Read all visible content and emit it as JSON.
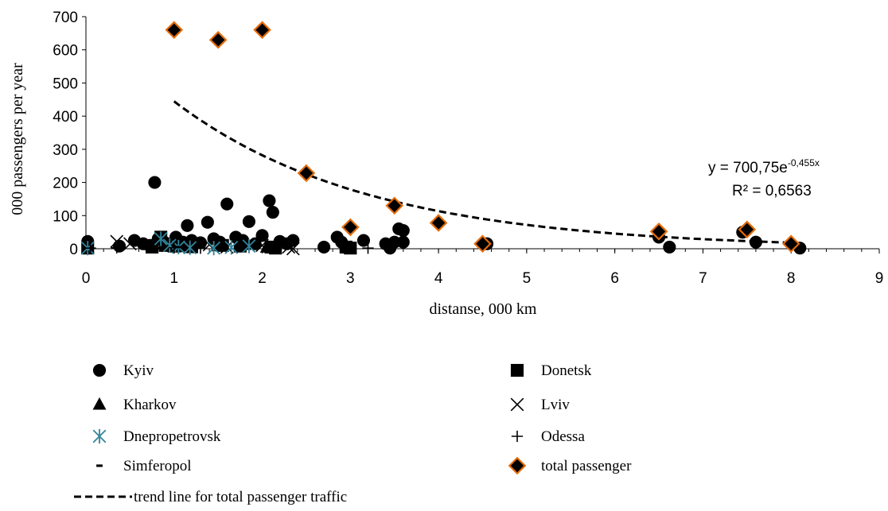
{
  "chart_data": {
    "type": "scatter",
    "xlabel": "distanse, 000 km",
    "ylabel": "000  passengers per year",
    "xlim": [
      0,
      9
    ],
    "ylim": [
      0,
      700
    ],
    "xticks": [
      "0",
      "1",
      "2",
      "3",
      "4",
      "5",
      "6",
      "7",
      "8",
      "9"
    ],
    "yticks": [
      "0",
      "100",
      "200",
      "300",
      "400",
      "500",
      "600",
      "700"
    ],
    "grid": false,
    "legend_position": "bottom",
    "series": [
      {
        "name": "Kyiv",
        "marker": "circle",
        "color": "#000000",
        "points": [
          [
            0.02,
            22
          ],
          [
            0.38,
            8
          ],
          [
            0.55,
            25
          ],
          [
            0.65,
            15
          ],
          [
            0.72,
            10
          ],
          [
            0.78,
            200
          ],
          [
            0.82,
            30
          ],
          [
            0.9,
            18
          ],
          [
            0.95,
            12
          ],
          [
            1.02,
            35
          ],
          [
            1.1,
            20
          ],
          [
            1.15,
            70
          ],
          [
            1.2,
            25
          ],
          [
            1.3,
            18
          ],
          [
            1.38,
            80
          ],
          [
            1.45,
            30
          ],
          [
            1.52,
            20
          ],
          [
            1.6,
            135
          ],
          [
            1.7,
            35
          ],
          [
            1.78,
            25
          ],
          [
            1.85,
            82
          ],
          [
            1.92,
            15
          ],
          [
            2.0,
            40
          ],
          [
            2.08,
            145
          ],
          [
            2.12,
            110
          ],
          [
            2.2,
            22
          ],
          [
            2.28,
            15
          ],
          [
            2.35,
            25
          ],
          [
            2.7,
            5
          ],
          [
            2.85,
            35
          ],
          [
            2.9,
            20
          ],
          [
            3.15,
            25
          ],
          [
            3.4,
            15
          ],
          [
            3.45,
            2
          ],
          [
            3.5,
            20
          ],
          [
            3.55,
            60
          ],
          [
            3.6,
            55
          ],
          [
            3.6,
            20
          ],
          [
            4.55,
            15
          ],
          [
            6.5,
            35
          ],
          [
            6.62,
            5
          ],
          [
            7.45,
            50
          ],
          [
            7.6,
            20
          ],
          [
            8.1,
            2
          ]
        ]
      },
      {
        "name": "Donetsk",
        "marker": "square",
        "color": "#000000",
        "points": [
          [
            0.02,
            2
          ],
          [
            0.75,
            5
          ],
          [
            0.85,
            35
          ],
          [
            0.9,
            10
          ],
          [
            1.0,
            8
          ],
          [
            1.1,
            12
          ],
          [
            1.2,
            6
          ],
          [
            1.55,
            10
          ],
          [
            1.75,
            8
          ],
          [
            2.1,
            5
          ],
          [
            2.15,
            2
          ],
          [
            2.95,
            5
          ],
          [
            3.0,
            2
          ]
        ]
      },
      {
        "name": "Kharkov",
        "marker": "triangle",
        "color": "#000000",
        "points": [
          [
            0.02,
            2
          ],
          [
            0.75,
            10
          ],
          [
            0.85,
            25
          ],
          [
            1.05,
            5
          ],
          [
            1.5,
            8
          ],
          [
            1.8,
            12
          ],
          [
            2.05,
            4
          ],
          [
            3.0,
            3
          ]
        ]
      },
      {
        "name": "Lviv",
        "marker": "x",
        "color": "#000000",
        "points": [
          [
            0.35,
            22
          ],
          [
            0.5,
            15
          ],
          [
            0.8,
            10
          ],
          [
            1.1,
            8
          ],
          [
            1.4,
            12
          ],
          [
            1.6,
            5
          ],
          [
            1.75,
            20
          ],
          [
            2.0,
            10
          ],
          [
            2.3,
            5
          ],
          [
            2.35,
            0
          ]
        ]
      },
      {
        "name": "Dnepropetrovsk",
        "marker": "asterisk",
        "color": "#31849b",
        "points": [
          [
            0.02,
            2
          ],
          [
            0.85,
            30
          ],
          [
            0.95,
            10
          ],
          [
            1.05,
            5
          ],
          [
            1.18,
            3
          ],
          [
            1.45,
            2
          ],
          [
            1.65,
            4
          ],
          [
            1.85,
            8
          ]
        ]
      },
      {
        "name": "Odessa",
        "marker": "plus",
        "color": "#000000",
        "points": [
          [
            0.05,
            2
          ],
          [
            0.35,
            3
          ],
          [
            0.7,
            5
          ],
          [
            1.0,
            3
          ],
          [
            1.3,
            2
          ],
          [
            1.75,
            6
          ],
          [
            2.1,
            3
          ],
          [
            3.0,
            4
          ],
          [
            3.2,
            2
          ]
        ]
      },
      {
        "name": "Simferopol",
        "marker": "dash",
        "color": "#000000",
        "points": [
          [
            0.85,
            2
          ],
          [
            1.05,
            5
          ],
          [
            1.3,
            3
          ],
          [
            2.1,
            4
          ],
          [
            2.95,
            2
          ]
        ]
      },
      {
        "name": "total passenger",
        "marker": "diamond",
        "color": "#000000",
        "edge_color": "#e46c0a",
        "points": [
          [
            1.0,
            660
          ],
          [
            1.5,
            630
          ],
          [
            2.0,
            660
          ],
          [
            2.5,
            228
          ],
          [
            3.0,
            65
          ],
          [
            3.5,
            130
          ],
          [
            4.0,
            78
          ],
          [
            4.5,
            15
          ],
          [
            6.5,
            52
          ],
          [
            7.5,
            58
          ],
          [
            8.0,
            15
          ]
        ]
      }
    ],
    "trendline": {
      "name": "trend line for total passenger traffic",
      "type": "exponential",
      "a": 700.75,
      "b": -0.455,
      "x_range": [
        1,
        8
      ],
      "style": "dashed",
      "equation_main": "y = 700,75e",
      "equation_exp": "-0,455x",
      "r2": "R² = 0,6563"
    }
  }
}
